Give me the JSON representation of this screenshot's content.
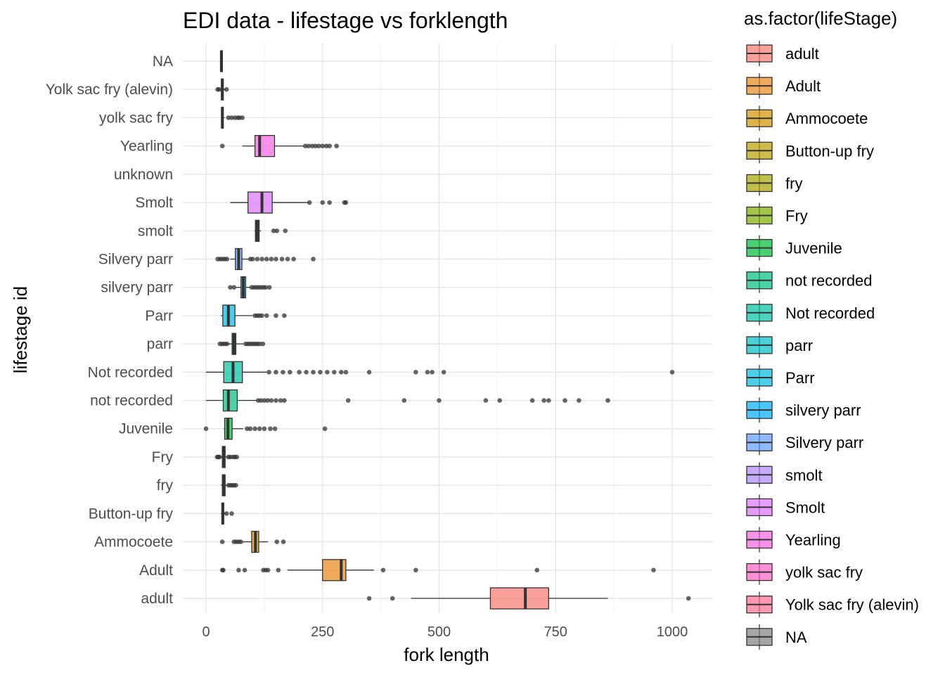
{
  "chart_data": {
    "type": "boxplot",
    "title": "EDI data - lifestage vs forklength",
    "xlabel": "fork length",
    "ylabel": "lifestage id",
    "xlim": [
      -50,
      1085
    ],
    "x_ticks": [
      0,
      250,
      500,
      750,
      1000
    ],
    "grid": "on",
    "legend": {
      "title": "as.factor(lifeStage)",
      "placement": "right"
    },
    "categories": [
      "adult",
      "Adult",
      "Ammocoete",
      "Button-up fry",
      "fry",
      "Fry",
      "Juvenile",
      "not recorded",
      "Not recorded",
      "parr",
      "Parr",
      "silvery parr",
      "Silvery parr",
      "smolt",
      "Smolt",
      "unknown",
      "Yearling",
      "yolk sac fry",
      "Yolk sac fry (alevin)",
      "NA"
    ],
    "legend_entries": [
      "adult",
      "Adult",
      "Ammocoete",
      "Button-up fry",
      "fry",
      "Fry",
      "Juvenile",
      "not recorded",
      "Not recorded",
      "parr",
      "Parr",
      "silvery parr",
      "Silvery parr",
      "smolt",
      "Smolt",
      "Yearling",
      "yolk sac fry",
      "Yolk sac fry (alevin)",
      "NA"
    ],
    "series": [
      {
        "name": "adult",
        "color": "#F8766D",
        "min": 440,
        "q1": 610,
        "median": 685,
        "q3": 735,
        "max": 862,
        "outliers": [
          350,
          400,
          1035
        ]
      },
      {
        "name": "Adult",
        "color": "#E7861B",
        "min": 175,
        "q1": 250,
        "median": 290,
        "q3": 300,
        "max": 360,
        "outliers": [
          35,
          37,
          70,
          83,
          123,
          128,
          133,
          155,
          380,
          450,
          710,
          960
        ]
      },
      {
        "name": "Ammocoete",
        "color": "#D39200",
        "min": 80,
        "q1": 98,
        "median": 106,
        "q3": 113,
        "max": 133,
        "outliers": [
          35,
          60,
          65,
          70,
          75,
          152,
          166
        ]
      },
      {
        "name": "Button-up fry",
        "color": "#BB9D00",
        "min": 32,
        "q1": 34,
        "median": 36,
        "q3": 38,
        "max": 42,
        "outliers": [
          44,
          55
        ]
      },
      {
        "name": "fry",
        "color": "#A5A300",
        "min": 32,
        "q1": 35,
        "median": 38,
        "q3": 41,
        "max": 46,
        "outliers": [
          48,
          52,
          56,
          60,
          64
        ]
      },
      {
        "name": "Fry",
        "color": "#7CAE00",
        "min": 28,
        "q1": 35,
        "median": 38,
        "q3": 41,
        "max": 46,
        "outliers": [
          24,
          26,
          29,
          48,
          52,
          58,
          62,
          66
        ]
      },
      {
        "name": "Juvenile",
        "color": "#00BA38",
        "min": 38,
        "q1": 40,
        "median": 47,
        "q3": 56,
        "max": 80,
        "outliers": [
          0,
          88,
          95,
          105,
          115,
          125,
          138,
          148,
          255
        ]
      },
      {
        "name": "not recorded",
        "color": "#00BF7D",
        "min": 0,
        "q1": 37,
        "median": 48,
        "q3": 67,
        "max": 110,
        "outliers": [
          112,
          118,
          125,
          132,
          140,
          150,
          160,
          168,
          305,
          425,
          500,
          600,
          630,
          700,
          725,
          735,
          770,
          800,
          862
        ]
      },
      {
        "name": "Not recorded",
        "color": "#00C1A3",
        "min": 0,
        "q1": 38,
        "median": 58,
        "q3": 78,
        "max": 130,
        "outliers": [
          135,
          150,
          165,
          180,
          200,
          215,
          230,
          245,
          260,
          275,
          290,
          300,
          350,
          450,
          475,
          485,
          510,
          1000
        ]
      },
      {
        "name": "parr",
        "color": "#00BFC4",
        "min": 32,
        "q1": 56,
        "median": 60,
        "q3": 64,
        "max": 80,
        "outliers": [
          30,
          35,
          40,
          45,
          85,
          90,
          95,
          100,
          105,
          110,
          115,
          122
        ]
      },
      {
        "name": "Parr",
        "color": "#00B9E3",
        "min": 32,
        "q1": 36,
        "median": 48,
        "q3": 62,
        "max": 100,
        "outliers": [
          105,
          110,
          115,
          120,
          130,
          150,
          168
        ]
      },
      {
        "name": "silvery parr",
        "color": "#00ADFA",
        "min": 65,
        "q1": 75,
        "median": 80,
        "q3": 85,
        "max": 95,
        "outliers": [
          52,
          60,
          98,
          103,
          108,
          113,
          118,
          123,
          128,
          136
        ]
      },
      {
        "name": "Silvery parr",
        "color": "#619CFF",
        "min": 52,
        "q1": 63,
        "median": 70,
        "q3": 77,
        "max": 92,
        "outliers": [
          25,
          30,
          35,
          40,
          45,
          95,
          100,
          110,
          120,
          130,
          140,
          150,
          163,
          175,
          188,
          230
        ]
      },
      {
        "name": "smolt",
        "color": "#AE87FF",
        "min": 104,
        "q1": 106,
        "median": 110,
        "q3": 114,
        "max": 118,
        "outliers": [
          145,
          152,
          170
        ]
      },
      {
        "name": "Smolt",
        "color": "#DB72FB",
        "min": 52,
        "q1": 90,
        "median": 120,
        "q3": 142,
        "max": 220,
        "outliers": [
          222,
          250,
          265,
          297,
          300
        ]
      },
      {
        "name": "Yearling",
        "color": "#F564E3",
        "min": 78,
        "q1": 105,
        "median": 115,
        "q3": 147,
        "max": 210,
        "outliers": [
          35,
          213,
          220,
          228,
          235,
          242,
          250,
          258,
          265,
          280
        ]
      },
      {
        "name": "yolk sac fry",
        "color": "#FF61C3",
        "min": 32,
        "q1": 34,
        "median": 35,
        "q3": 37,
        "max": 40,
        "outliers": [
          48,
          55,
          62,
          68,
          72,
          78
        ]
      },
      {
        "name": "Yolk sac fry (alevin)",
        "color": "#FF6C91",
        "min": 30,
        "q1": 33,
        "median": 35,
        "q3": 37,
        "max": 42,
        "outliers": [
          25,
          28,
          44
        ]
      },
      {
        "name": "NA",
        "color": "#808080",
        "min": 30,
        "q1": 32,
        "median": 33,
        "q3": 35,
        "max": 36,
        "outliers": []
      }
    ]
  }
}
